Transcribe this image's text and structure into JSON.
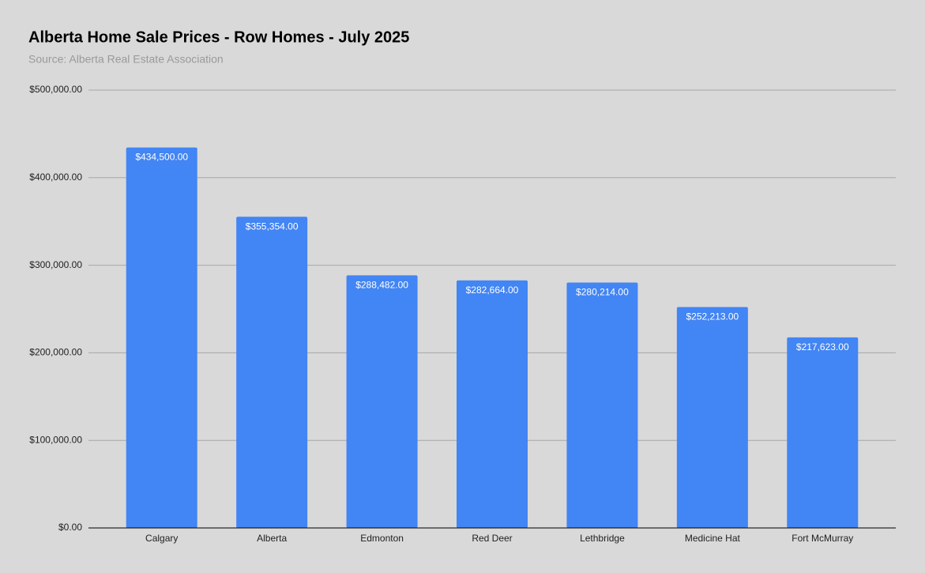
{
  "chart_data": {
    "type": "bar",
    "title": "Alberta Home Sale Prices - Row Homes - July 2025",
    "subtitle": "Source: Alberta Real Estate Association",
    "categories": [
      "Calgary",
      "Alberta",
      "Edmonton",
      "Red Deer",
      "Lethbridge",
      "Medicine Hat",
      "Fort McMurray"
    ],
    "values": [
      434500,
      355354,
      288482,
      282664,
      280214,
      252213,
      217623
    ],
    "value_labels": [
      "$434,500.00",
      "$355,354.00",
      "$288,482.00",
      "$282,664.00",
      "$280,214.00",
      "$252,213.00",
      "$217,623.00"
    ],
    "color": "#4285f4",
    "ylim": [
      0,
      500000
    ],
    "yticks": [
      {
        "value": 0,
        "label": "$0.00"
      },
      {
        "value": 100000,
        "label": "$100,000.00"
      },
      {
        "value": 200000,
        "label": "$200,000.00"
      },
      {
        "value": 300000,
        "label": "$300,000.00"
      },
      {
        "value": 400000,
        "label": "$400,000.00"
      },
      {
        "value": 500000,
        "label": "$500,000.00"
      }
    ],
    "grid": true
  }
}
